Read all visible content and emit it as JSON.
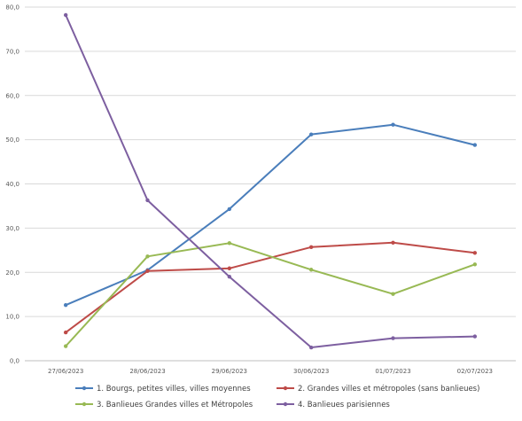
{
  "chart_data": {
    "type": "line",
    "title": "",
    "xlabel": "",
    "ylabel": "",
    "categories": [
      "27/06/2023",
      "28/06/2023",
      "29/06/2023",
      "30/06/2023",
      "01/07/2023",
      "02/07/2023"
    ],
    "ylim": [
      0,
      80
    ],
    "yticks": [
      "0,0",
      "10,0",
      "20,0",
      "30,0",
      "40,0",
      "50,0",
      "60,0",
      "70,0",
      "80,0"
    ],
    "grid": true,
    "legend_position": "bottom",
    "series": [
      {
        "name": "1. Bourgs, petites villes, villes moyennes",
        "color": "#4a7ebb",
        "values": [
          12.6,
          20.5,
          34.3,
          51.2,
          53.4,
          48.8
        ]
      },
      {
        "name": "2. Grandes villes et métropoles (sans banlieues)",
        "color": "#be4b48",
        "values": [
          6.4,
          20.3,
          20.9,
          25.7,
          26.7,
          24.4
        ]
      },
      {
        "name": "3. Banlieues Grandes villes et Métropoles",
        "color": "#98b954",
        "values": [
          3.3,
          23.6,
          26.6,
          20.6,
          15.1,
          21.8
        ]
      },
      {
        "name": "4. Banlieues parisiennes",
        "color": "#7d5fa0",
        "values": [
          78.2,
          36.3,
          19.0,
          3.0,
          5.1,
          5.5
        ]
      }
    ]
  }
}
